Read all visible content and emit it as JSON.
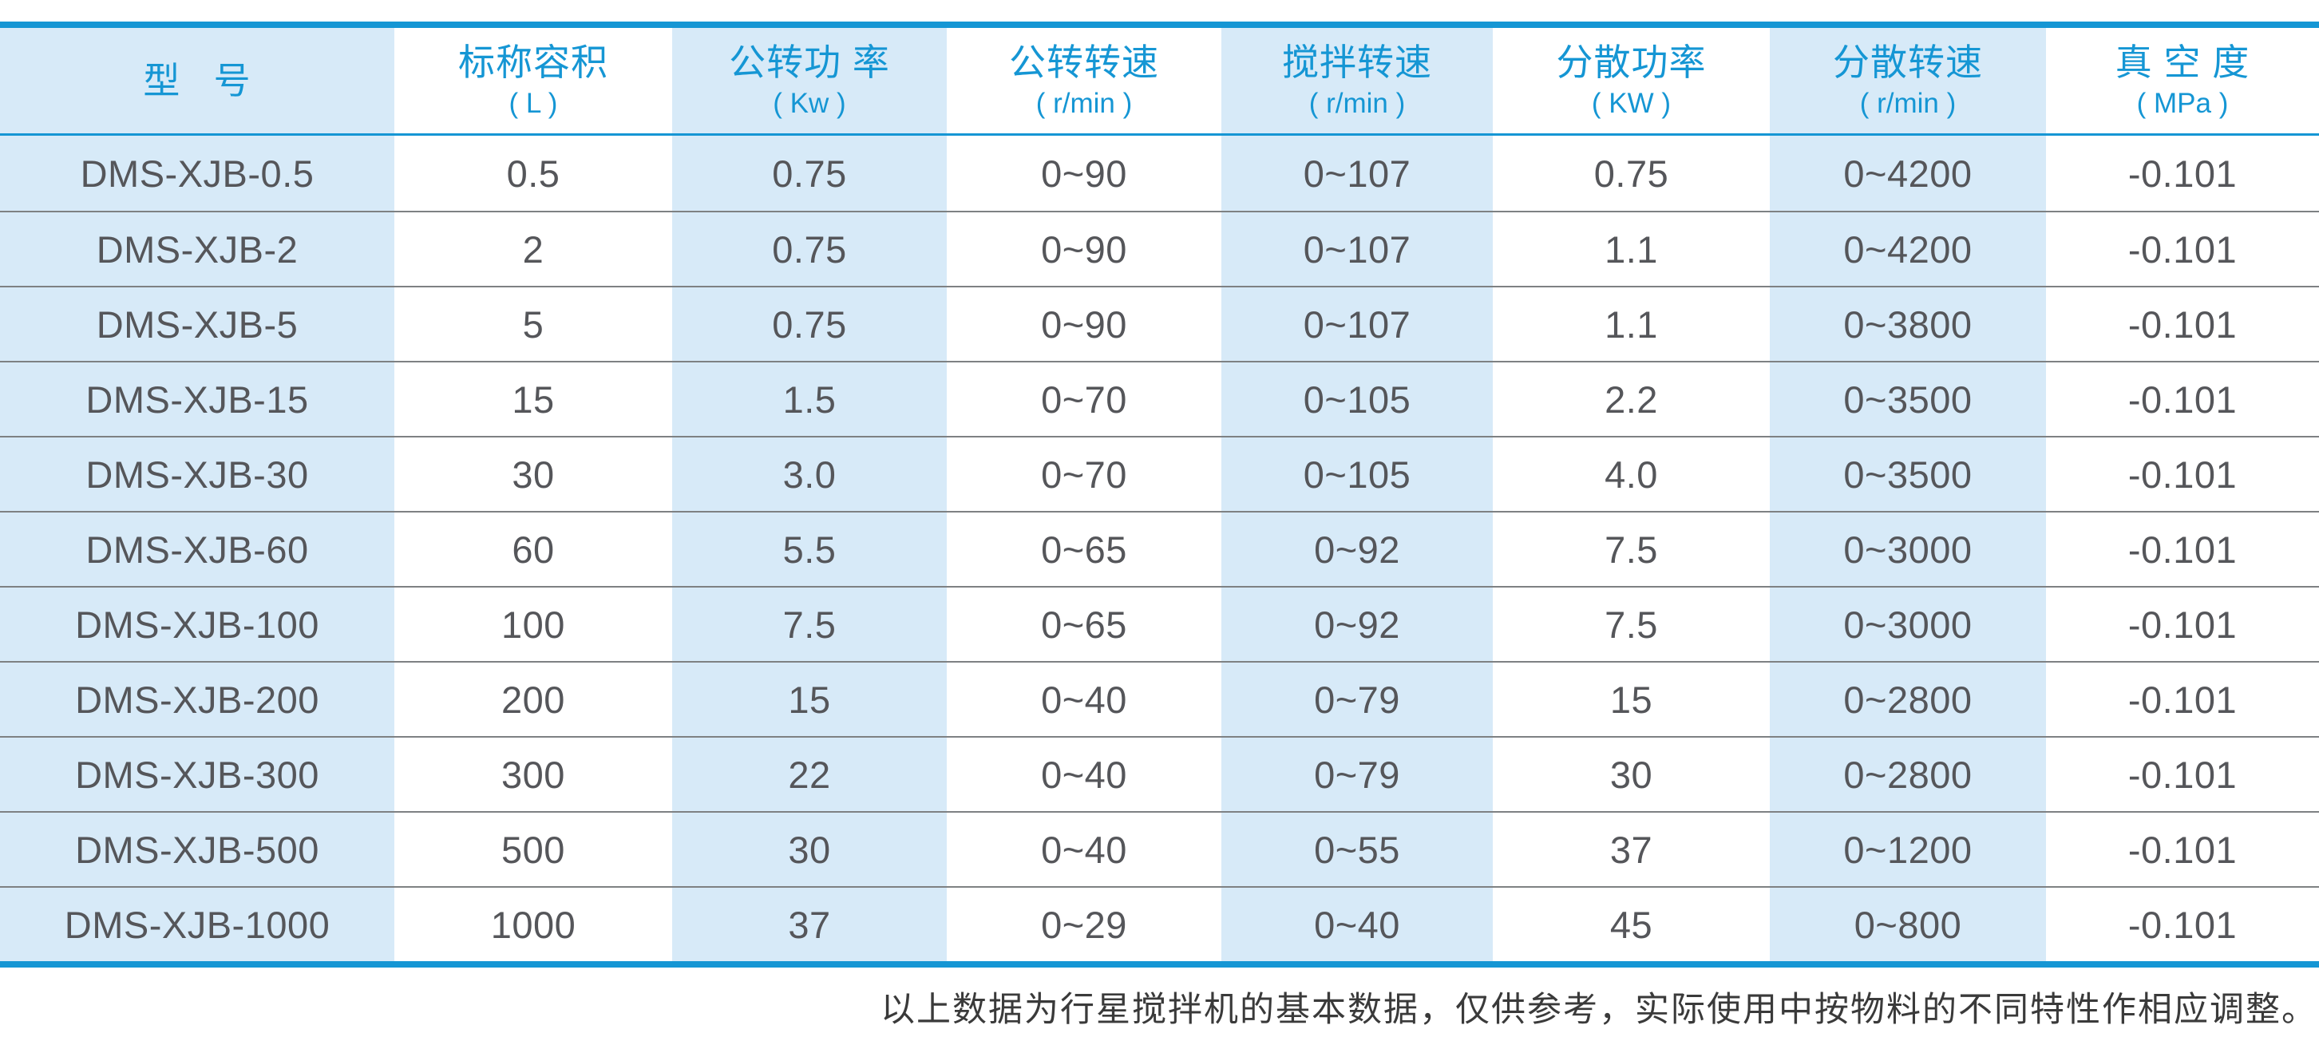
{
  "colors": {
    "accent_blue": "#1596d4",
    "light_blue_bg": "#d7eaf8",
    "body_text": "#55565a",
    "row_line_gray": "#7e8183",
    "footer_text": "#3a3a3a"
  },
  "table": {
    "columns": [
      {
        "title": "型   号",
        "unit": ""
      },
      {
        "title": "标称容积",
        "unit": "( L )"
      },
      {
        "title": "公转功 率",
        "unit": "( Kw )"
      },
      {
        "title": "公转转速",
        "unit": "( r/min )"
      },
      {
        "title": "搅拌转速",
        "unit": "( r/min )"
      },
      {
        "title": "分散功率",
        "unit": "( KW )"
      },
      {
        "title": "分散转速",
        "unit": "( r/min )"
      },
      {
        "title": "真 空 度",
        "unit": "( MPa )"
      }
    ],
    "rows": [
      [
        "DMS-XJB-0.5",
        "0.5",
        "0.75",
        "0~90",
        "0~107",
        "0.75",
        "0~4200",
        "-0.101"
      ],
      [
        "DMS-XJB-2",
        "2",
        "0.75",
        "0~90",
        "0~107",
        "1.1",
        "0~4200",
        "-0.101"
      ],
      [
        "DMS-XJB-5",
        "5",
        "0.75",
        "0~90",
        "0~107",
        "1.1",
        "0~3800",
        "-0.101"
      ],
      [
        "DMS-XJB-15",
        "15",
        "1.5",
        "0~70",
        "0~105",
        "2.2",
        "0~3500",
        "-0.101"
      ],
      [
        "DMS-XJB-30",
        "30",
        "3.0",
        "0~70",
        "0~105",
        "4.0",
        "0~3500",
        "-0.101"
      ],
      [
        "DMS-XJB-60",
        "60",
        "5.5",
        "0~65",
        "0~92",
        "7.5",
        "0~3000",
        "-0.101"
      ],
      [
        "DMS-XJB-100",
        "100",
        "7.5",
        "0~65",
        "0~92",
        "7.5",
        "0~3000",
        "-0.101"
      ],
      [
        "DMS-XJB-200",
        "200",
        "15",
        "0~40",
        "0~79",
        "15",
        "0~2800",
        "-0.101"
      ],
      [
        "DMS-XJB-300",
        "300",
        "22",
        "0~40",
        "0~79",
        "30",
        "0~2800",
        "-0.101"
      ],
      [
        "DMS-XJB-500",
        "500",
        "30",
        "0~40",
        "0~55",
        "37",
        "0~1200",
        "-0.101"
      ],
      [
        "DMS-XJB-1000",
        "1000",
        "37",
        "0~29",
        "0~40",
        "45",
        "0~800",
        "-0.101"
      ]
    ]
  },
  "footer": {
    "note": "以上数据为行星搅拌机的基本数据，仅供参考，实际使用中按物料的不同特性作相应调整。"
  },
  "chart_data": {
    "type": "table",
    "title": "行星搅拌机基本参数表",
    "columns": [
      "型号",
      "标称容积 (L)",
      "公转功率 (Kw)",
      "公转转速 (r/min)",
      "搅拌转速 (r/min)",
      "分散功率 (KW)",
      "分散转速 (r/min)",
      "真空度 (MPa)"
    ],
    "rows": [
      [
        "DMS-XJB-0.5",
        "0.5",
        "0.75",
        "0~90",
        "0~107",
        "0.75",
        "0~4200",
        "-0.101"
      ],
      [
        "DMS-XJB-2",
        "2",
        "0.75",
        "0~90",
        "0~107",
        "1.1",
        "0~4200",
        "-0.101"
      ],
      [
        "DMS-XJB-5",
        "5",
        "0.75",
        "0~90",
        "0~107",
        "1.1",
        "0~3800",
        "-0.101"
      ],
      [
        "DMS-XJB-15",
        "15",
        "1.5",
        "0~70",
        "0~105",
        "2.2",
        "0~3500",
        "-0.101"
      ],
      [
        "DMS-XJB-30",
        "30",
        "3.0",
        "0~70",
        "0~105",
        "4.0",
        "0~3500",
        "-0.101"
      ],
      [
        "DMS-XJB-60",
        "60",
        "5.5",
        "0~65",
        "0~92",
        "7.5",
        "0~3000",
        "-0.101"
      ],
      [
        "DMS-XJB-100",
        "100",
        "7.5",
        "0~65",
        "0~92",
        "7.5",
        "0~3000",
        "-0.101"
      ],
      [
        "DMS-XJB-200",
        "200",
        "15",
        "0~40",
        "0~79",
        "15",
        "0~2800",
        "-0.101"
      ],
      [
        "DMS-XJB-300",
        "300",
        "22",
        "0~40",
        "0~79",
        "30",
        "0~2800",
        "-0.101"
      ],
      [
        "DMS-XJB-500",
        "500",
        "30",
        "0~40",
        "0~55",
        "37",
        "0~1200",
        "-0.101"
      ],
      [
        "DMS-XJB-1000",
        "1000",
        "37",
        "0~29",
        "0~40",
        "45",
        "0~800",
        "-0.101"
      ]
    ],
    "layout_hints": {
      "striped_columns": "odd columns light blue, even columns white",
      "thick_blue_border_top_bottom": true,
      "thin_blue_line_under_header": true,
      "gray_row_separators": true
    }
  }
}
